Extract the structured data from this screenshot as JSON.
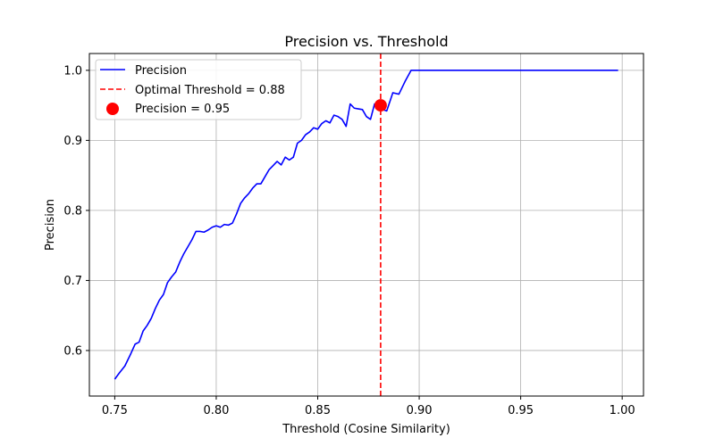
{
  "chart_data": {
    "type": "line",
    "title": "Precision vs. Threshold",
    "xlabel": "Threshold (Cosine Similarity)",
    "ylabel": "Precision",
    "xlim": [
      0.7375,
      1.0105
    ],
    "ylim": [
      0.535,
      1.024
    ],
    "xticks": [
      0.75,
      0.8,
      0.85,
      0.9,
      0.95,
      1.0
    ],
    "xtick_labels": [
      "0.75",
      "0.80",
      "0.85",
      "0.90",
      "0.95",
      "1.00"
    ],
    "yticks": [
      0.6,
      0.7,
      0.8,
      0.9,
      1.0
    ],
    "ytick_labels": [
      "0.6",
      "0.7",
      "0.8",
      "0.9",
      "1.0"
    ],
    "grid": true,
    "legend_position": "upper-left",
    "series": [
      {
        "name": "Precision",
        "color": "#0000ff",
        "x": [
          0.75,
          0.752,
          0.755,
          0.758,
          0.76,
          0.762,
          0.764,
          0.766,
          0.768,
          0.77,
          0.772,
          0.774,
          0.776,
          0.778,
          0.78,
          0.782,
          0.784,
          0.786,
          0.788,
          0.79,
          0.792,
          0.794,
          0.796,
          0.798,
          0.8,
          0.802,
          0.804,
          0.806,
          0.808,
          0.81,
          0.812,
          0.814,
          0.816,
          0.818,
          0.82,
          0.822,
          0.824,
          0.826,
          0.828,
          0.83,
          0.832,
          0.834,
          0.836,
          0.838,
          0.84,
          0.842,
          0.844,
          0.846,
          0.848,
          0.85,
          0.852,
          0.854,
          0.856,
          0.858,
          0.86,
          0.862,
          0.864,
          0.866,
          0.868,
          0.87,
          0.872,
          0.874,
          0.876,
          0.878,
          0.88,
          0.881,
          0.884,
          0.887,
          0.89,
          0.893,
          0.896,
          0.898,
          0.9,
          0.903,
          0.905,
          0.907,
          0.908,
          0.909,
          0.911,
          0.913,
          0.915,
          0.93,
          0.96,
          0.99,
          0.998
        ],
        "y": [
          0.559,
          0.567,
          0.578,
          0.596,
          0.609,
          0.612,
          0.628,
          0.636,
          0.646,
          0.66,
          0.672,
          0.68,
          0.697,
          0.705,
          0.712,
          0.726,
          0.738,
          0.748,
          0.758,
          0.77,
          0.77,
          0.769,
          0.772,
          0.776,
          0.778,
          0.776,
          0.78,
          0.779,
          0.782,
          0.795,
          0.81,
          0.818,
          0.824,
          0.832,
          0.838,
          0.838,
          0.848,
          0.858,
          0.864,
          0.87,
          0.865,
          0.876,
          0.872,
          0.876,
          0.896,
          0.9,
          0.908,
          0.912,
          0.918,
          0.916,
          0.924,
          0.928,
          0.925,
          0.936,
          0.934,
          0.93,
          0.92,
          0.952,
          0.946,
          0.945,
          0.944,
          0.934,
          0.93,
          0.952,
          0.948,
          0.945,
          0.942,
          0.968,
          0.966,
          0.984,
          1.0,
          1.0,
          1.0,
          1.0,
          1.0,
          1.0,
          1.0,
          1.0,
          1.0,
          1.0,
          1.0,
          1.0,
          1.0,
          1.0,
          1.0
        ]
      }
    ],
    "threshold_line": {
      "label": "Optimal Threshold = 0.88",
      "x": 0.881,
      "color": "#ff0000"
    },
    "optimal_point": {
      "label": "Precision = 0.95",
      "x": 0.881,
      "y": 0.95,
      "color": "#ff0000"
    }
  }
}
